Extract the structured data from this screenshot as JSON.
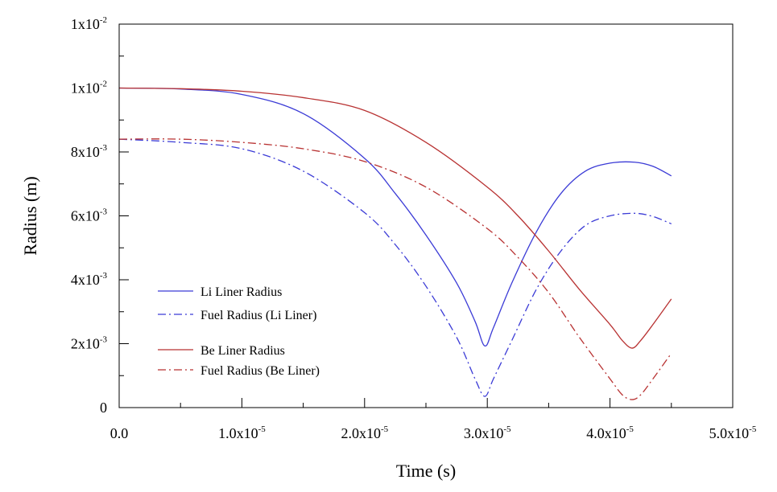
{
  "chart_data": {
    "type": "line",
    "title": "",
    "xlabel": "Time (s)",
    "ylabel": "Radius (m)",
    "xlim": [
      0,
      5e-05
    ],
    "ylim": [
      0,
      0.012
    ],
    "x_ticks": [
      {
        "value": 0,
        "base": "0.0",
        "exp": ""
      },
      {
        "value": 1e-05,
        "base": "1.0x10",
        "exp": "-5"
      },
      {
        "value": 2e-05,
        "base": "2.0x10",
        "exp": "-5"
      },
      {
        "value": 3e-05,
        "base": "3.0x10",
        "exp": "-5"
      },
      {
        "value": 4e-05,
        "base": "4.0x10",
        "exp": "-5"
      },
      {
        "value": 5e-05,
        "base": "5.0x10",
        "exp": "-5"
      }
    ],
    "y_ticks": [
      {
        "value": 0,
        "base": "0",
        "exp": ""
      },
      {
        "value": 0.002,
        "base": "2x10",
        "exp": "-3"
      },
      {
        "value": 0.004,
        "base": "4x10",
        "exp": "-3"
      },
      {
        "value": 0.006,
        "base": "6x10",
        "exp": "-3"
      },
      {
        "value": 0.008,
        "base": "8x10",
        "exp": "-3"
      },
      {
        "value": 0.01,
        "base": "1x10",
        "exp": "-2"
      },
      {
        "value": 0.012,
        "base": "1x10",
        "exp": "-2"
      }
    ],
    "grid": false,
    "legend_position": "bottom-left",
    "series": [
      {
        "name": "Li Liner Radius",
        "color": "#3b3bd6",
        "style": "solid",
        "x": [
          0,
          5e-06,
          1e-05,
          1.5e-05,
          2e-05,
          2.25e-05,
          2.5e-05,
          2.75e-05,
          2.9e-05,
          2.98e-05,
          3.05e-05,
          3.2e-05,
          3.4e-05,
          3.6e-05,
          3.8e-05,
          4e-05,
          4.2e-05,
          4.35e-05,
          4.5e-05
        ],
        "y": [
          0.01,
          0.00997,
          0.0098,
          0.0092,
          0.0078,
          0.0067,
          0.0054,
          0.0039,
          0.0027,
          0.00193,
          0.0025,
          0.0039,
          0.0055,
          0.0067,
          0.0074,
          0.00765,
          0.00768,
          0.00755,
          0.00725
        ]
      },
      {
        "name": "Fuel Radius (Li Liner)",
        "color": "#3b3bd6",
        "style": "dashdot",
        "x": [
          0,
          5e-06,
          1e-05,
          1.5e-05,
          2e-05,
          2.25e-05,
          2.5e-05,
          2.75e-05,
          2.9e-05,
          2.98e-05,
          3.05e-05,
          3.2e-05,
          3.4e-05,
          3.6e-05,
          3.8e-05,
          4e-05,
          4.2e-05,
          4.35e-05,
          4.5e-05
        ],
        "y": [
          0.0084,
          0.0083,
          0.0081,
          0.0074,
          0.0061,
          0.0051,
          0.0038,
          0.0022,
          0.0009,
          0.00035,
          0.0009,
          0.0021,
          0.0037,
          0.0049,
          0.0057,
          0.006,
          0.00608,
          0.00598,
          0.00575
        ]
      },
      {
        "name": "Be Liner Radius",
        "color": "#b83232",
        "style": "solid",
        "x": [
          0,
          5e-06,
          1e-05,
          1.5e-05,
          2e-05,
          2.5e-05,
          3e-05,
          3.25e-05,
          3.5e-05,
          3.75e-05,
          4e-05,
          4.1e-05,
          4.18e-05,
          4.25e-05,
          4.35e-05,
          4.5e-05
        ],
        "y": [
          0.01,
          0.00998,
          0.0099,
          0.0097,
          0.0093,
          0.0083,
          0.0069,
          0.006,
          0.0049,
          0.0037,
          0.0026,
          0.0021,
          0.00186,
          0.0021,
          0.0026,
          0.0034
        ]
      },
      {
        "name": "Fuel Radius (Be Liner)",
        "color": "#b83232",
        "style": "dashdot",
        "x": [
          0,
          5e-06,
          1e-05,
          1.5e-05,
          2e-05,
          2.5e-05,
          3e-05,
          3.25e-05,
          3.5e-05,
          3.75e-05,
          4e-05,
          4.1e-05,
          4.18e-05,
          4.25e-05,
          4.35e-05,
          4.5e-05
        ],
        "y": [
          0.0084,
          0.0084,
          0.0083,
          0.0081,
          0.0077,
          0.0069,
          0.0056,
          0.0047,
          0.0036,
          0.0022,
          0.0009,
          0.0004,
          0.00025,
          0.0004,
          0.0009,
          0.0017
        ]
      }
    ]
  }
}
